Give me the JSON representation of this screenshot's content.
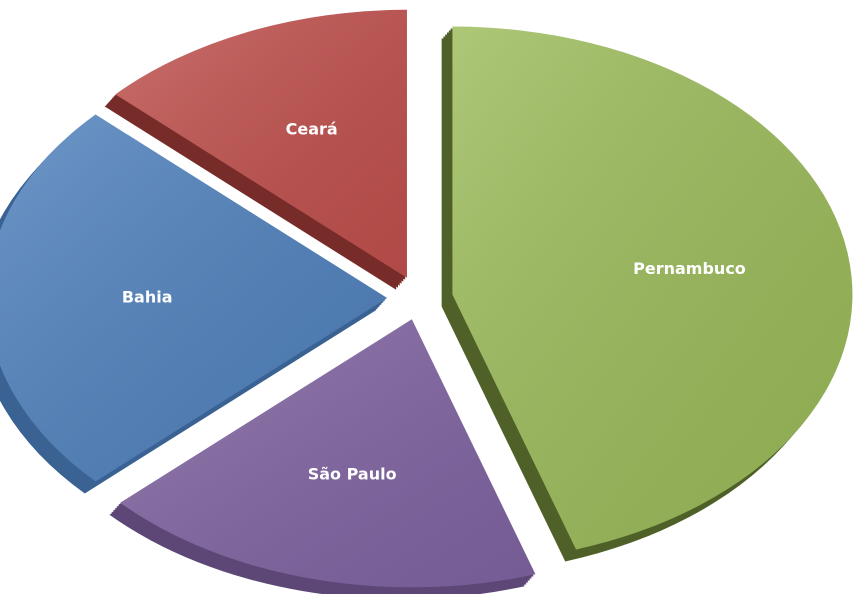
{
  "chart_data": {
    "type": "pie",
    "categories": [
      "Pernambuco",
      "São Paulo",
      "Bahia",
      "Ceará"
    ],
    "values": [
      45,
      18,
      24,
      13
    ],
    "colors": [
      "#9bbb59",
      "#8064a2",
      "#4f81bd",
      "#c0504d"
    ],
    "side_colors": [
      "#4f6128",
      "#5c4776",
      "#3a6293",
      "#772c2a"
    ],
    "exploded": true
  }
}
